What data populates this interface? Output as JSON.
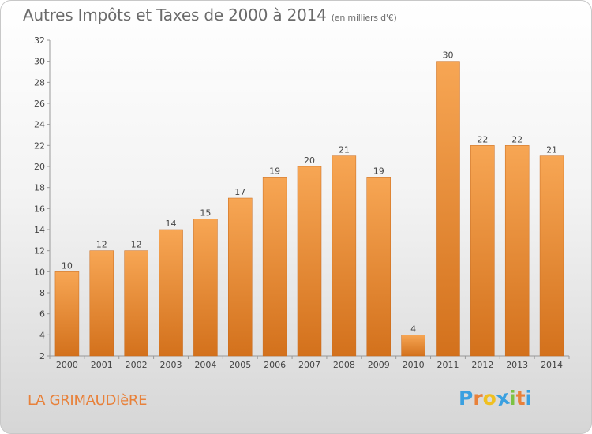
{
  "header": {
    "title": "Autres Impôts et Taxes de 2000 à 2014",
    "subtitle": "(en milliers d'€)"
  },
  "footer": {
    "commune": "LA GRIMAUDIèRE",
    "logo_letters": [
      "P",
      "r",
      "o",
      "x",
      "i",
      "t",
      "i"
    ],
    "logo_colors": [
      "#3aa0e0",
      "#e8813a",
      "#f0c020",
      "#3aa0e0",
      "#7cc243",
      "#e8813a",
      "#3aa0e0"
    ]
  },
  "colors": {
    "bar_light": "#f7a654",
    "bar_dark": "#d3711c",
    "bar_edge": "#c8691a",
    "axis": "#999999",
    "text": "#444444"
  },
  "chart_data": {
    "type": "bar",
    "title": "Autres Impôts et Taxes de 2000 à 2014",
    "subtitle": "(en milliers d'€)",
    "categories": [
      "2000",
      "2001",
      "2002",
      "2003",
      "2004",
      "2005",
      "2006",
      "2007",
      "2008",
      "2009",
      "2010",
      "2011",
      "2012",
      "2013",
      "2014"
    ],
    "values": [
      10,
      12,
      12,
      14,
      15,
      17,
      19,
      20,
      21,
      19,
      4,
      30,
      22,
      22,
      21
    ],
    "ylim": [
      2,
      32
    ],
    "yticks": [
      2,
      4,
      6,
      8,
      10,
      12,
      14,
      16,
      18,
      20,
      22,
      24,
      26,
      28,
      30,
      32
    ],
    "grid": false,
    "xlabel": "",
    "ylabel": ""
  }
}
